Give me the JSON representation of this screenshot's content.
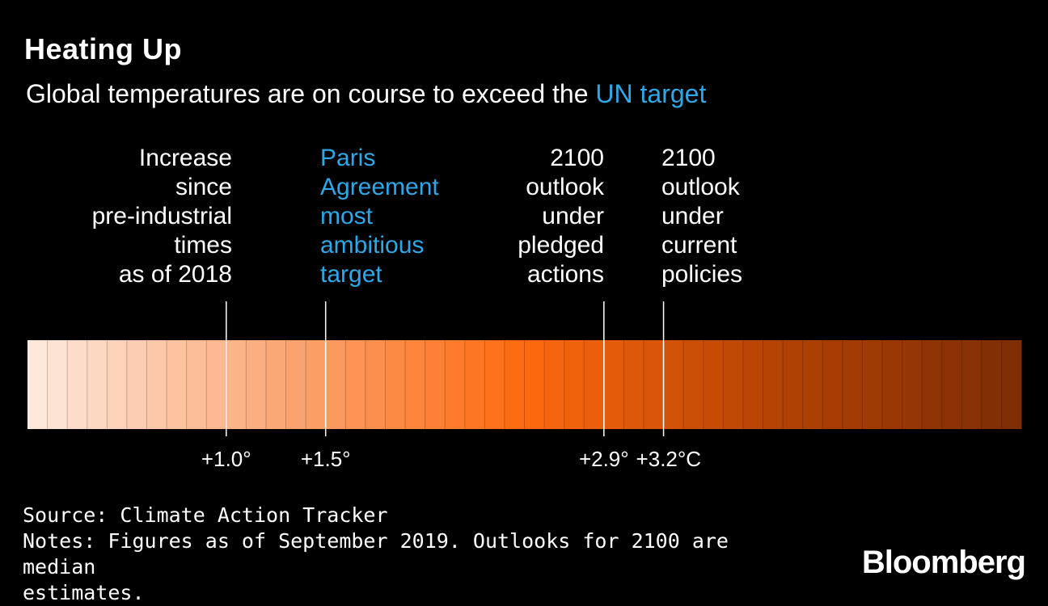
{
  "title": "Heating Up",
  "subtitle": {
    "prefix": "Global temperatures are on course to exceed the ",
    "highlight": "UN target"
  },
  "annotations": [
    {
      "lines": [
        "Increase",
        "since",
        "pre-industrial",
        "times",
        "as of 2018"
      ],
      "value": 1.0,
      "color": "#ffffff"
    },
    {
      "lines": [
        "Paris",
        "Agreement",
        "most",
        "ambitious",
        "target"
      ],
      "value": 1.5,
      "color": "#2da8e8"
    },
    {
      "lines": [
        "2100",
        "outlook",
        "under",
        "pledged",
        "actions"
      ],
      "value": 2.9,
      "color": "#ffffff"
    },
    {
      "lines": [
        "2100",
        "outlook",
        "under",
        "current",
        "policies"
      ],
      "value": 3.2,
      "color": "#ffffff"
    }
  ],
  "chart_data": {
    "type": "heat-scale",
    "x_range": [
      0,
      5
    ],
    "segments": 50,
    "gradient_colors": [
      "#fde8da",
      "#fba775",
      "#fe6a0e",
      "#b64304",
      "#7e2d05"
    ],
    "markers": [
      {
        "value": 1.0,
        "label": "+1.0°"
      },
      {
        "value": 1.5,
        "label": "+1.5°"
      },
      {
        "value": 2.9,
        "label": "+2.9°"
      },
      {
        "value": 3.2,
        "label": "+3.2°C"
      }
    ]
  },
  "footer": {
    "source": "Source: Climate Action Tracker",
    "notes_line1": "Notes: Figures as of September 2019. Outlooks for 2100 are median",
    "notes_line2": "estimates."
  },
  "brand": "Bloomberg"
}
